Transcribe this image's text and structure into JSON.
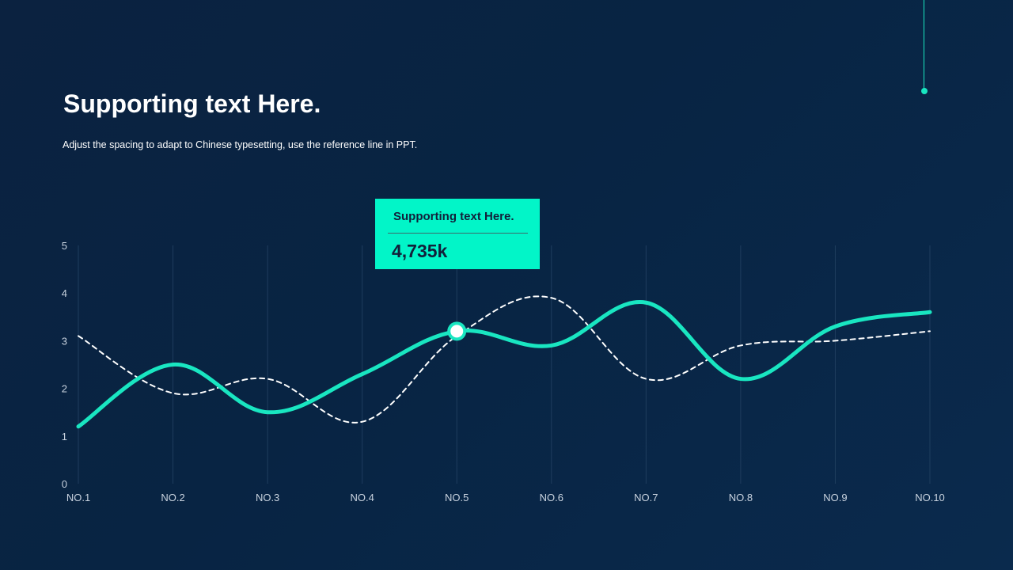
{
  "header": {
    "title": "Supporting text Here.",
    "subtitle": "Adjust the spacing to adapt to Chinese typesetting, use the reference line in PPT."
  },
  "tooltip": {
    "label": "Supporting text Here.",
    "value": "4,735k"
  },
  "colors": {
    "accent": "#02f5c8",
    "background": "#0b2240",
    "dashed": "#ffffff"
  },
  "chart_data": {
    "type": "line",
    "categories": [
      "NO.1",
      "NO.2",
      "NO.3",
      "NO.4",
      "NO.5",
      "NO.6",
      "NO.7",
      "NO.8",
      "NO.9",
      "NO.10"
    ],
    "yticks": [
      0,
      1,
      2,
      3,
      4,
      5
    ],
    "ylim": [
      0,
      5
    ],
    "grid": "vertical",
    "series": [
      {
        "style": "solid",
        "color": "#19e6c1",
        "values": [
          1.2,
          2.5,
          1.5,
          2.3,
          3.2,
          2.9,
          3.8,
          2.2,
          3.3,
          3.6
        ]
      },
      {
        "style": "dashed",
        "color": "#ffffff",
        "values": [
          3.1,
          1.9,
          2.2,
          1.3,
          3.1,
          3.9,
          2.2,
          2.9,
          3.0,
          3.2
        ]
      }
    ],
    "highlight": {
      "series": 0,
      "index": 4
    }
  }
}
